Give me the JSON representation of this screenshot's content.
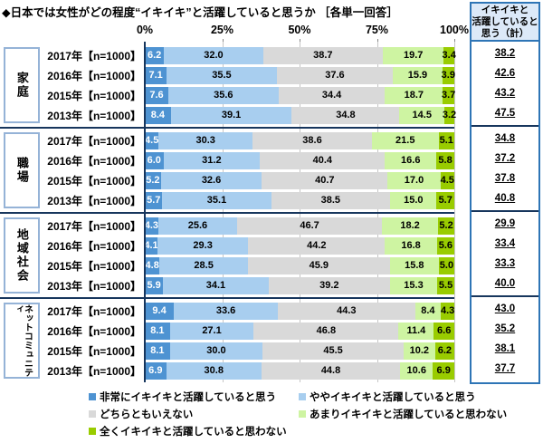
{
  "title": "◆日本では女性がどの程度“イキイキ”と活躍していると思うか ［各単一回答］",
  "axis": {
    "ticks": [
      "0%",
      "25%",
      "50%",
      "75%",
      "100%"
    ]
  },
  "summary": {
    "header_lines": [
      "イキイキと",
      "活躍していると",
      "思う（計）"
    ]
  },
  "legend": {
    "items": [
      {
        "label": "非常にイキイキと活躍していると思う",
        "color": "#4e93d2"
      },
      {
        "label": "ややイキイキと活躍していると思う",
        "color": "#a8ceef"
      },
      {
        "label": "どちらともいえない",
        "color": "#d9d9d9"
      },
      {
        "label": "あまりイキイキと活躍していると思わない",
        "color": "#cef4a2"
      },
      {
        "label": "全くイキイキと活躍していると思わない",
        "color": "#99cc00"
      }
    ]
  },
  "chart_data": {
    "type": "bar",
    "orientation": "horizontal",
    "stacked": true,
    "xlim": [
      0,
      100
    ],
    "x_ticks": [
      0,
      25,
      50,
      75,
      100
    ],
    "series_labels": [
      "非常にイキイキと活躍していると思う",
      "ややイキイキと活躍していると思う",
      "どちらともいえない",
      "あまりイキイキと活躍していると思わない",
      "全くイキイキと活躍していると思わない"
    ],
    "series_colors": [
      "#4e93d2",
      "#a8ceef",
      "#d9d9d9",
      "#cef4a2",
      "#99cc00"
    ],
    "summary_label": "イキイキと活躍していると思う（計）",
    "groups": [
      {
        "category": "家庭",
        "rows": [
          {
            "label": "2017年【n=1000】",
            "values": [
              "6.2",
              "32.0",
              "38.7",
              "19.7",
              "3.4"
            ],
            "total": "38.2"
          },
          {
            "label": "2016年【n=1000】",
            "values": [
              "7.1",
              "35.5",
              "37.6",
              "15.9",
              "3.9"
            ],
            "total": "42.6"
          },
          {
            "label": "2015年【n=1000】",
            "values": [
              "7.6",
              "35.6",
              "34.4",
              "18.7",
              "3.7"
            ],
            "total": "43.2"
          },
          {
            "label": "2013年【n=1000】",
            "values": [
              "8.4",
              "39.1",
              "34.8",
              "14.5",
              "3.2"
            ],
            "total": "47.5"
          }
        ]
      },
      {
        "category": "職場",
        "rows": [
          {
            "label": "2017年【n=1000】",
            "values": [
              "4.5",
              "30.3",
              "38.6",
              "21.5",
              "5.1"
            ],
            "total": "34.8"
          },
          {
            "label": "2016年【n=1000】",
            "values": [
              "6.0",
              "31.2",
              "40.4",
              "16.6",
              "5.8"
            ],
            "total": "37.2"
          },
          {
            "label": "2015年【n=1000】",
            "values": [
              "5.2",
              "32.6",
              "40.7",
              "17.0",
              "4.5"
            ],
            "total": "37.8"
          },
          {
            "label": "2013年【n=1000】",
            "values": [
              "5.7",
              "35.1",
              "38.5",
              "15.0",
              "5.7"
            ],
            "total": "40.8"
          }
        ]
      },
      {
        "category": "地域社会",
        "rows": [
          {
            "label": "2017年【n=1000】",
            "values": [
              "4.3",
              "25.6",
              "46.7",
              "18.2",
              "5.2"
            ],
            "total": "29.9"
          },
          {
            "label": "2016年【n=1000】",
            "values": [
              "4.1",
              "29.3",
              "44.2",
              "16.8",
              "5.6"
            ],
            "total": "33.4"
          },
          {
            "label": "2015年【n=1000】",
            "values": [
              "4.8",
              "28.5",
              "45.9",
              "15.8",
              "5.0"
            ],
            "total": "33.3"
          },
          {
            "label": "2013年【n=1000】",
            "values": [
              "5.9",
              "34.1",
              "39.2",
              "15.3",
              "5.5"
            ],
            "total": "40.0"
          }
        ]
      },
      {
        "category": "ネットコミュニティ",
        "rows": [
          {
            "label": "2017年【n=1000】",
            "values": [
              "9.4",
              "33.6",
              "44.3",
              "8.4",
              "4.3"
            ],
            "total": "43.0"
          },
          {
            "label": "2016年【n=1000】",
            "values": [
              "8.1",
              "27.1",
              "46.8",
              "11.4",
              "6.6"
            ],
            "total": "35.2"
          },
          {
            "label": "2015年【n=1000】",
            "values": [
              "8.1",
              "30.0",
              "45.5",
              "10.2",
              "6.2"
            ],
            "total": "38.1"
          },
          {
            "label": "2013年【n=1000】",
            "values": [
              "6.9",
              "30.8",
              "44.8",
              "10.6",
              "6.9"
            ],
            "total": "37.7"
          }
        ]
      }
    ]
  }
}
